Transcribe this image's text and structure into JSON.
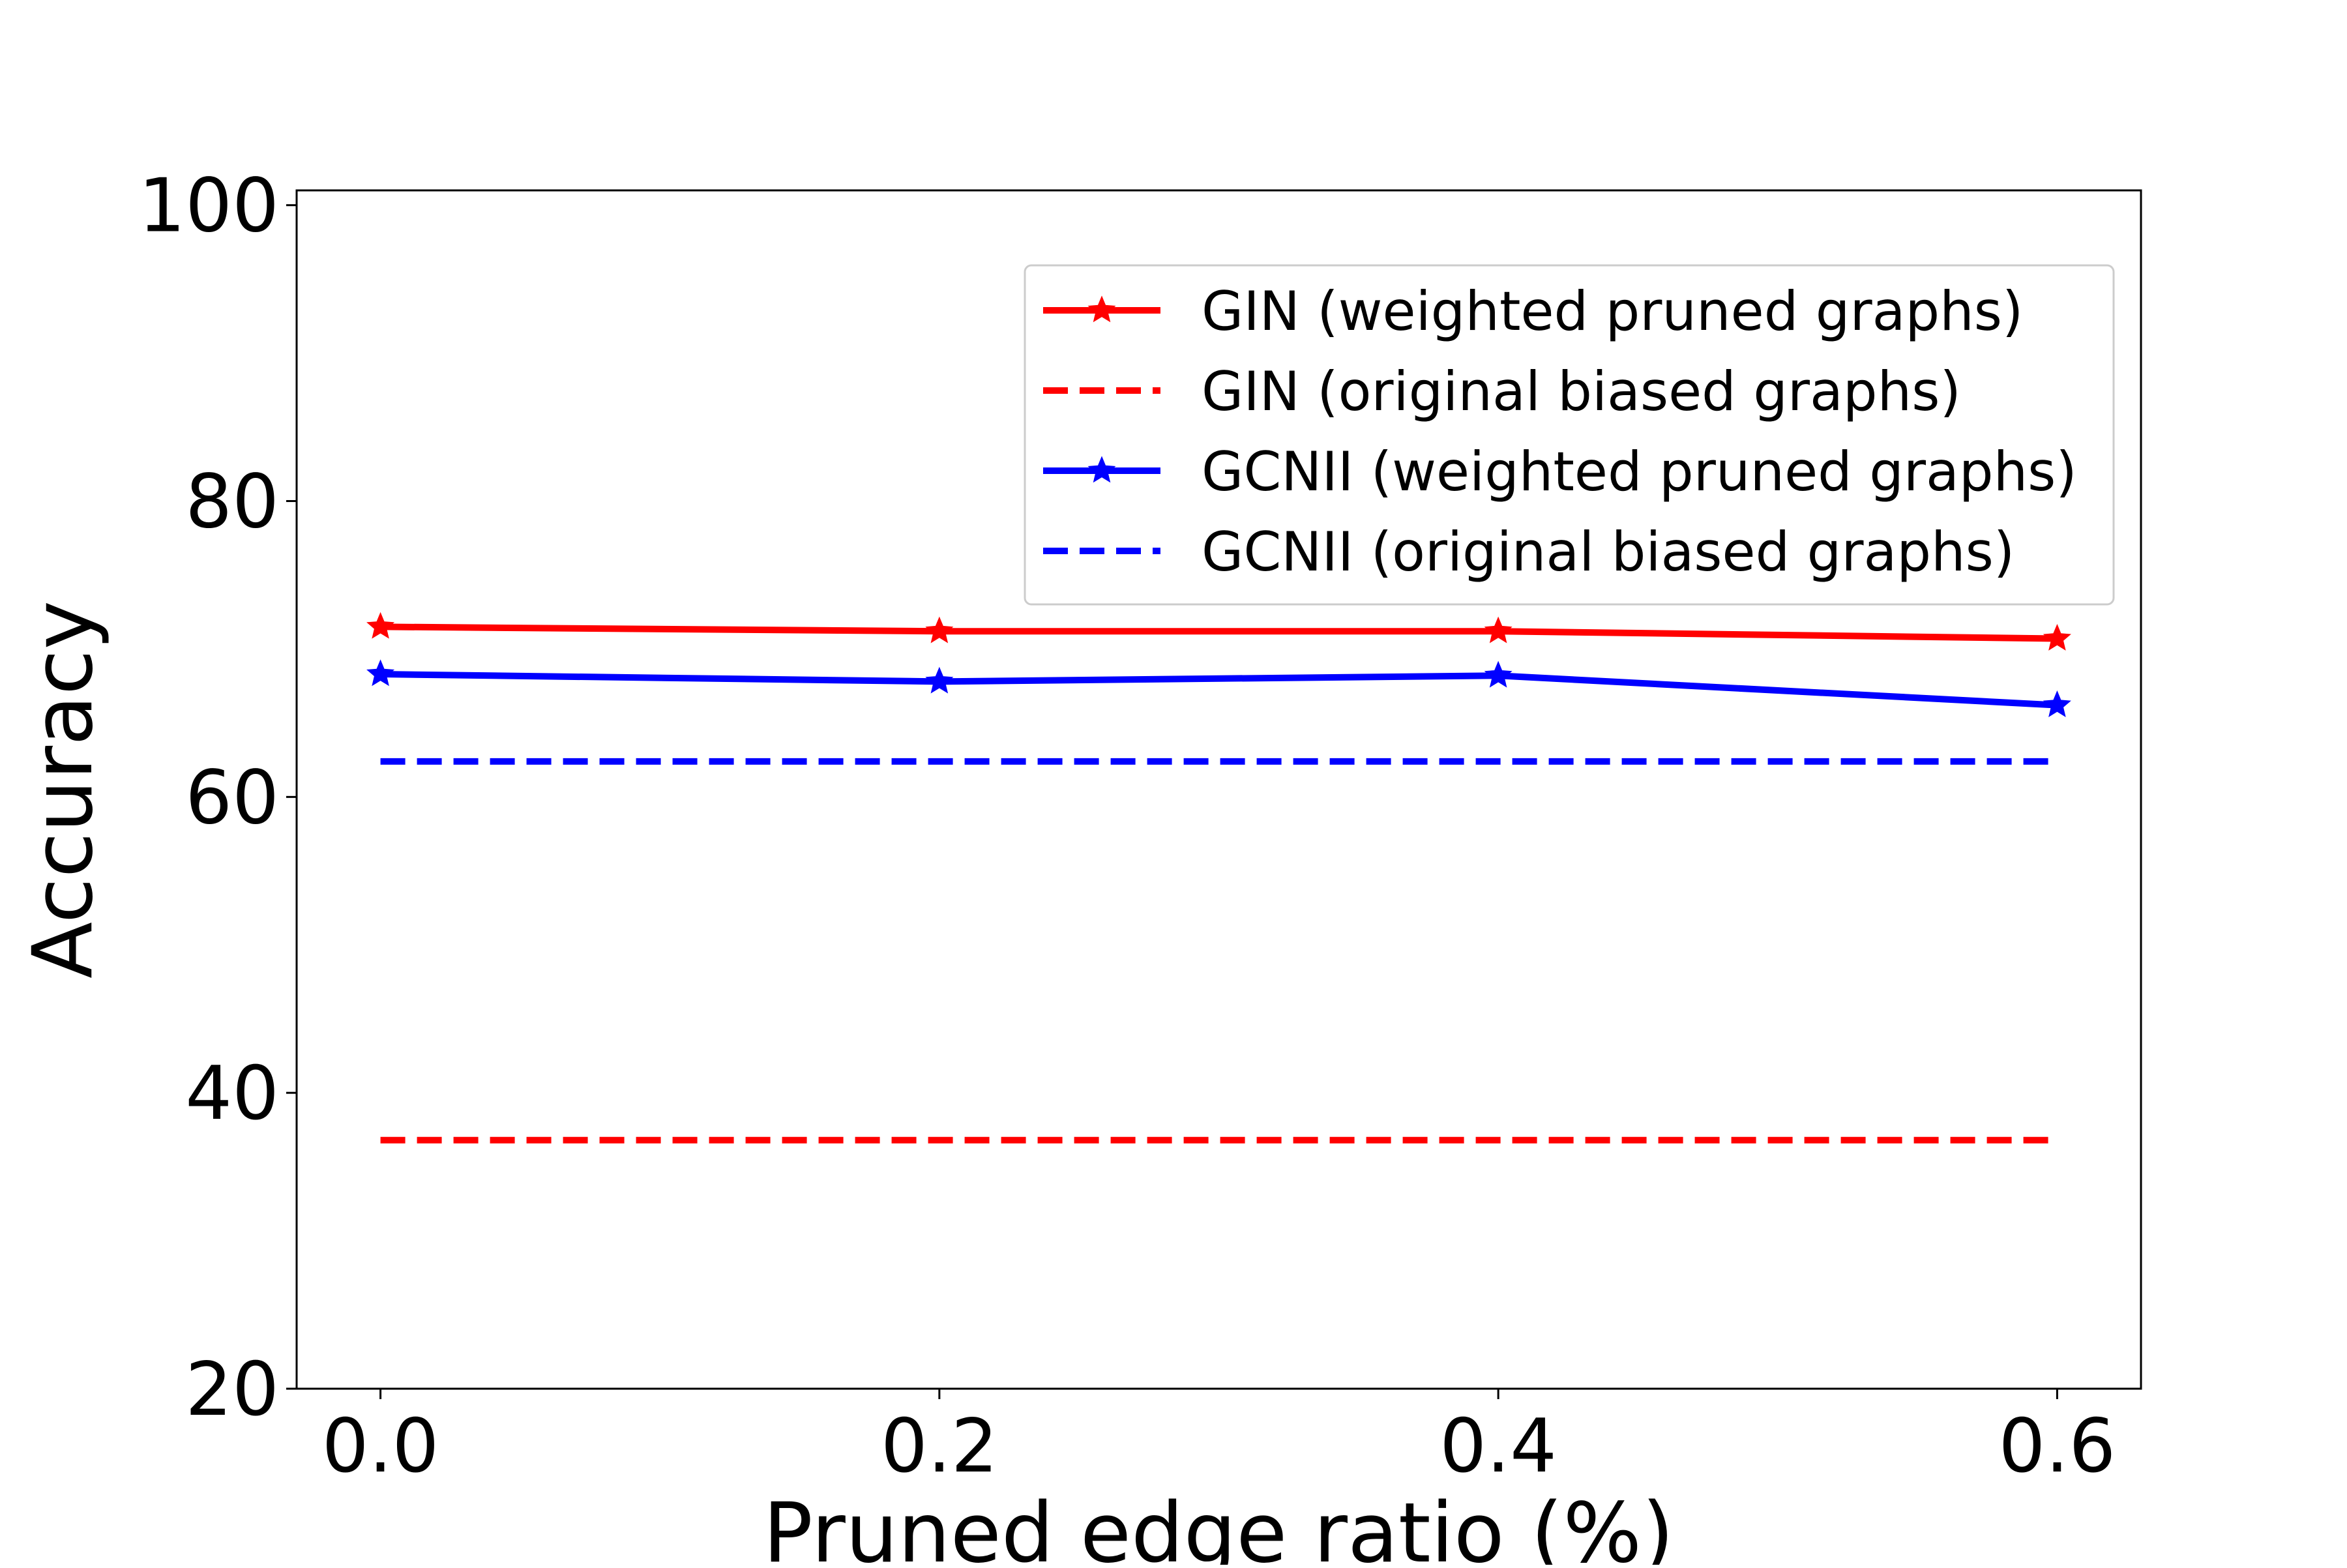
{
  "chart_data": {
    "type": "line",
    "title": "",
    "xlabel": "Pruned edge ratio (%)",
    "ylabel": "Accuracy",
    "x": [
      0.0,
      0.2,
      0.4,
      0.6
    ],
    "x_tick_labels": [
      "0.0",
      "0.2",
      "0.4",
      "0.6"
    ],
    "y_tick_labels": [
      "20",
      "40",
      "60",
      "80",
      "100"
    ],
    "xlim": [
      -0.03,
      0.63
    ],
    "ylim": [
      20,
      101
    ],
    "grid": false,
    "legend_position": "upper right",
    "series": [
      {
        "name": "GIN (weighted pruned graphs)",
        "values": [
          71.5,
          71.2,
          71.2,
          70.7
        ],
        "color": "#ff0000",
        "line_style": "solid",
        "marker": "star"
      },
      {
        "name": "GIN (original biased graphs)",
        "values": [
          36.8,
          36.8,
          36.8,
          36.8
        ],
        "color": "#ff0000",
        "line_style": "dashed",
        "marker": "none"
      },
      {
        "name": "GCNII (weighted pruned graphs)",
        "values": [
          68.3,
          67.8,
          68.2,
          66.2
        ],
        "color": "#0000ff",
        "line_style": "solid",
        "marker": "star"
      },
      {
        "name": "GCNII (original biased graphs)",
        "values": [
          62.4,
          62.4,
          62.4,
          62.4
        ],
        "color": "#0000ff",
        "line_style": "dashed",
        "marker": "none"
      }
    ]
  }
}
